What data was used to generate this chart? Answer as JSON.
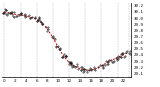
{
  "hours": [
    0,
    1,
    2,
    3,
    4,
    5,
    6,
    7,
    8,
    9,
    10,
    11,
    12,
    13,
    14,
    15,
    16,
    17,
    18,
    19,
    20,
    21,
    22,
    23
  ],
  "pressure": [
    30.1,
    30.08,
    30.06,
    30.05,
    30.03,
    30.01,
    29.98,
    29.92,
    29.82,
    29.68,
    29.52,
    29.38,
    29.28,
    29.22,
    29.18,
    29.16,
    29.15,
    29.18,
    29.22,
    29.28,
    29.32,
    29.36,
    29.4,
    29.44
  ],
  "scatter_color": "#111111",
  "line_color": "#cc0000",
  "background_color": "#ffffff",
  "ylim_min": 29.05,
  "ylim_max": 30.25,
  "ytick_values": [
    29.1,
    29.2,
    29.3,
    29.4,
    29.5,
    29.6,
    29.7,
    29.8,
    29.9,
    30.0,
    30.1,
    30.2
  ],
  "grid_color": "#888888",
  "tick_fontsize": 3.0,
  "grid_x_positions": [
    0,
    3,
    6,
    9,
    12,
    15,
    18,
    21,
    23
  ],
  "xtick_positions": [
    0,
    1,
    2,
    3,
    4,
    5,
    6,
    7,
    8,
    9,
    10,
    11,
    12,
    13,
    14,
    15,
    16,
    17,
    18,
    19,
    20,
    21,
    22,
    23
  ]
}
